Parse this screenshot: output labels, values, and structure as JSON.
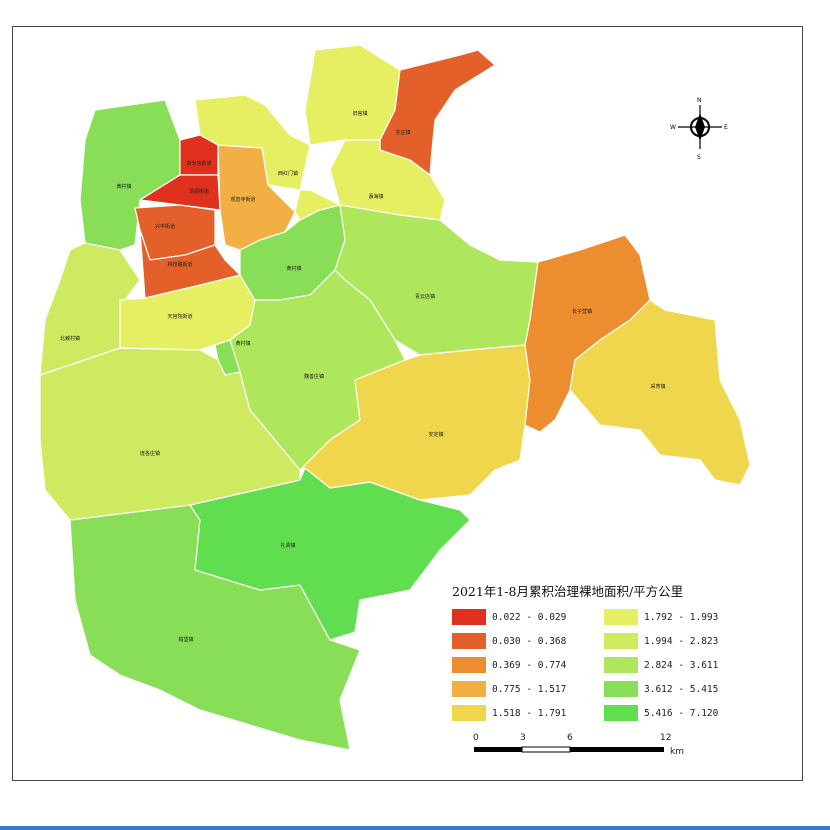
{
  "legend": {
    "title": "2021年1-8月累积治理裸地面积/平方公里",
    "classes": [
      {
        "label": "0.022 - 0.029",
        "color": "#e0301e"
      },
      {
        "label": "0.030 - 0.368",
        "color": "#e3602a"
      },
      {
        "label": "0.369 - 0.774",
        "color": "#ec8d30"
      },
      {
        "label": "0.775 - 1.517",
        "color": "#f2b044"
      },
      {
        "label": "1.518 - 1.791",
        "color": "#f0d64d"
      },
      {
        "label": "1.792 - 1.993",
        "color": "#e6ef62"
      },
      {
        "label": "1.994 - 2.823",
        "color": "#cdea61"
      },
      {
        "label": "2.824 - 3.611",
        "color": "#aee75c"
      },
      {
        "label": "3.612 - 5.415",
        "color": "#88df57"
      },
      {
        "label": "5.416 - 7.120",
        "color": "#61de4f"
      }
    ]
  },
  "scalebar": {
    "ticks": [
      "0",
      "3",
      "6",
      "12"
    ],
    "unit": "km"
  },
  "north_arrow": {
    "n": "N",
    "s": "S",
    "e": "E",
    "w": "W"
  },
  "regions": [
    {
      "name": "高米店街道",
      "value_class": "0.022 - 0.029"
    },
    {
      "name": "清源街道",
      "value_class": "0.022 - 0.029"
    },
    {
      "name": "兴丰街道",
      "value_class": "0.030 - 0.368"
    },
    {
      "name": "林校路街道",
      "value_class": "0.030 - 0.368"
    },
    {
      "name": "亦庄镇",
      "value_class": "0.030 - 0.368"
    },
    {
      "name": "长子营镇",
      "value_class": "0.369 - 0.774"
    },
    {
      "name": "观音寺街道",
      "value_class": "0.775 - 1.517"
    },
    {
      "name": "安定镇",
      "value_class": "1.518 - 1.791"
    },
    {
      "name": "采育镇",
      "value_class": "1.518 - 1.791"
    },
    {
      "name": "旧宫镇",
      "value_class": "1.792 - 1.993"
    },
    {
      "name": "西红门镇",
      "value_class": "1.792 - 1.993"
    },
    {
      "name": "瀛海镇",
      "value_class": "1.792 - 1.993"
    },
    {
      "name": "天宫院街道",
      "value_class": "1.792 - 1.993"
    },
    {
      "name": "北臧村镇",
      "value_class": "1.994 - 2.823"
    },
    {
      "name": "庞各庄镇",
      "value_class": "1.994 - 2.823"
    },
    {
      "name": "青云店镇",
      "value_class": "2.824 - 3.611"
    },
    {
      "name": "魏善庄镇",
      "value_class": "2.824 - 3.611"
    },
    {
      "name": "黄村镇",
      "value_class": "3.612 - 5.415"
    },
    {
      "name": "榆垡镇",
      "value_class": "3.612 - 5.415"
    },
    {
      "name": "礼贤镇",
      "value_class": "5.416 - 7.120"
    }
  ]
}
